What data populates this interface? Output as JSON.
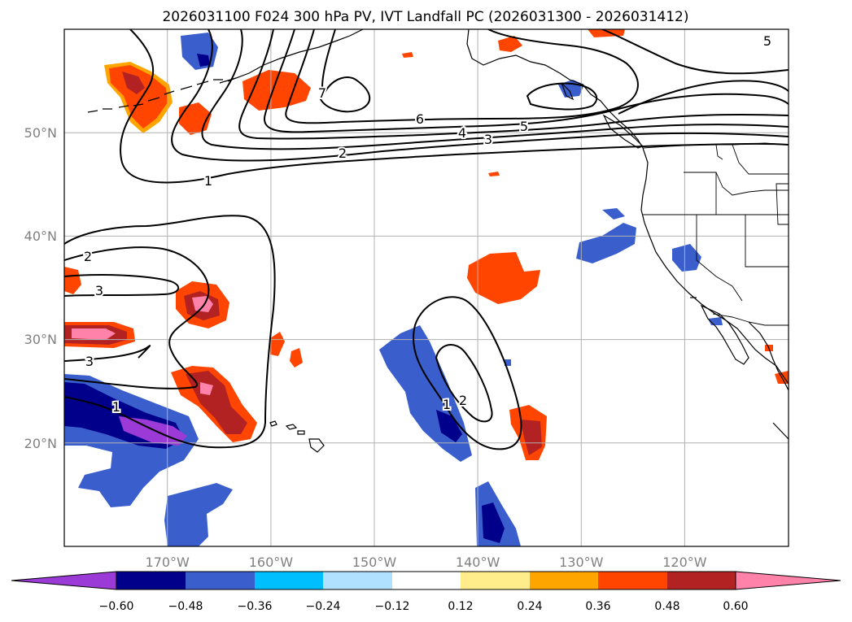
{
  "title": "2026031100 F024 300 hPa PV, IVT Landfall PC (2026031300 - 2026031412)",
  "latitude_labels": [
    "50°N",
    "40°N",
    "30°N",
    "20°N"
  ],
  "longitude_labels": [
    "170°W",
    "160°W",
    "150°W",
    "140°W",
    "130°W",
    "120°W"
  ],
  "colorbar": {
    "tick_labels": [
      "−0.60",
      "−0.48",
      "−0.36",
      "−0.24",
      "−0.12",
      "0.12",
      "0.24",
      "0.36",
      "0.48",
      "0.60"
    ],
    "colors": [
      "#9b3ad6",
      "#00008b",
      "#3a5fcd",
      "#00bfff",
      "#b0e2ff",
      "#ffffff",
      "#ffec8b",
      "#ffa500",
      "#ff4500",
      "#b22222",
      "#ff82ab"
    ]
  },
  "contour_labels": [
    "1",
    "2",
    "3",
    "4",
    "5",
    "6",
    "7",
    "5",
    "2",
    "3",
    "3",
    "1",
    "2",
    "1"
  ],
  "chart_data": {
    "type": "map",
    "projection": "PlateCarree",
    "lon_range": [
      -180,
      -110
    ],
    "lat_range": [
      10,
      60
    ],
    "shaded_field": "IVT landfall principal component (filled)",
    "contour_field": "300 hPa PV (PVU)",
    "levels": [
      -0.6,
      -0.48,
      -0.36,
      -0.24,
      -0.12,
      0.12,
      0.24,
      0.36,
      0.48,
      0.6
    ],
    "contour_values": [
      1,
      2,
      3,
      4,
      5,
      6,
      7
    ]
  }
}
